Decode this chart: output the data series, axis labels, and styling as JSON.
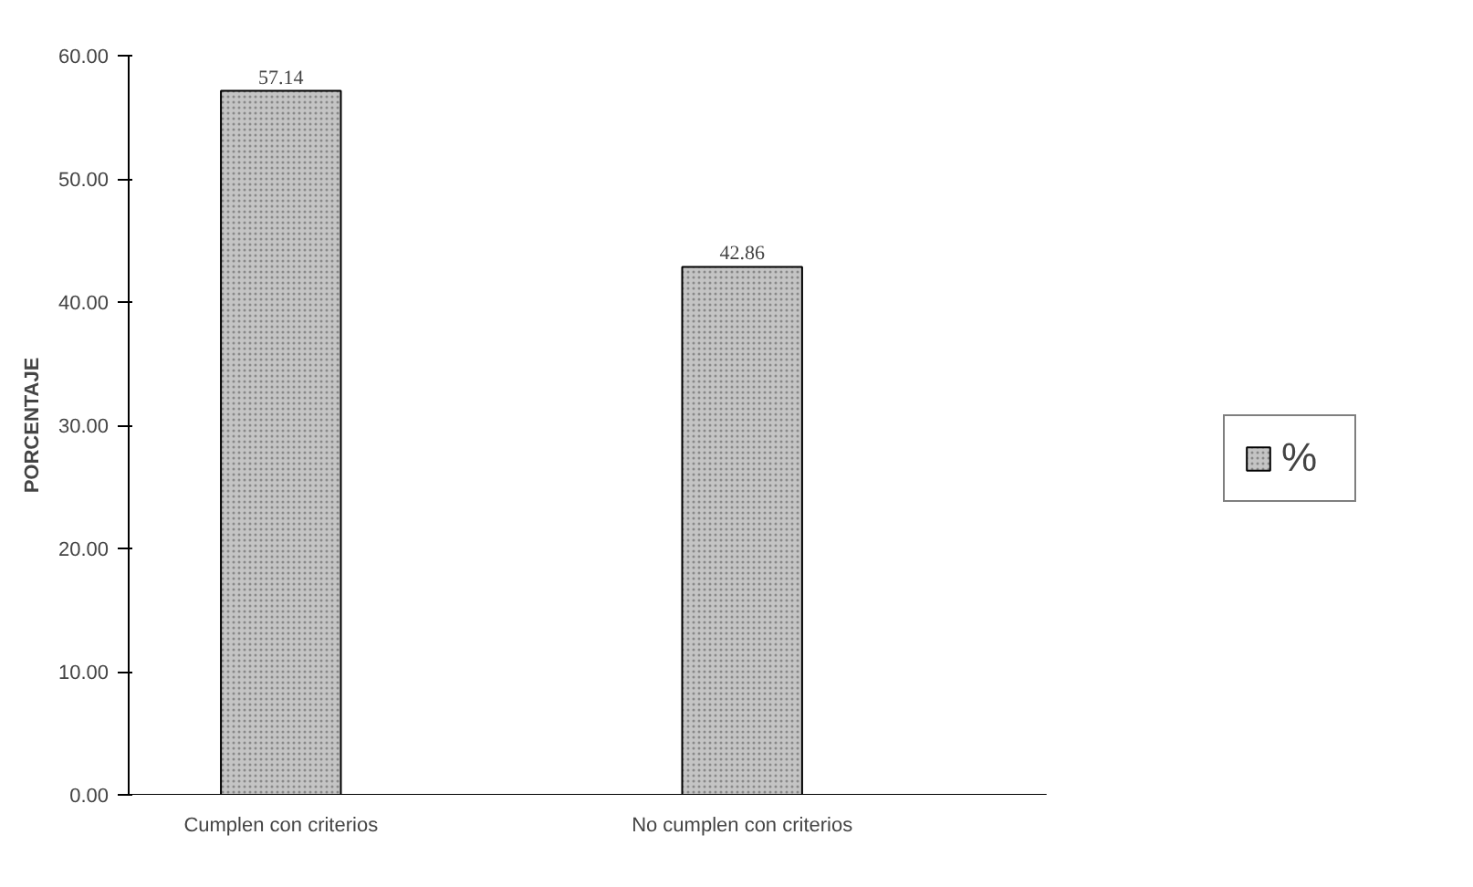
{
  "chart_data": {
    "type": "bar",
    "ylabel": "PORCENTAJE",
    "categories": [
      "Cumplen con criterios",
      "No cumplen con criterios"
    ],
    "series": [
      {
        "name": "%",
        "color": "#c4c4c4",
        "values": [
          57.14,
          42.86
        ]
      }
    ],
    "ylim": [
      0,
      60
    ],
    "yticks": [
      {
        "value": 0,
        "label": "0.00"
      },
      {
        "value": 10,
        "label": "10.00"
      },
      {
        "value": 20,
        "label": "20.00"
      },
      {
        "value": 30,
        "label": "30.00"
      },
      {
        "value": 40,
        "label": "40.00"
      },
      {
        "value": 50,
        "label": "50.00"
      },
      {
        "value": 60,
        "label": "60.00"
      }
    ],
    "data_labels": true,
    "legend": "right",
    "grid": false
  }
}
